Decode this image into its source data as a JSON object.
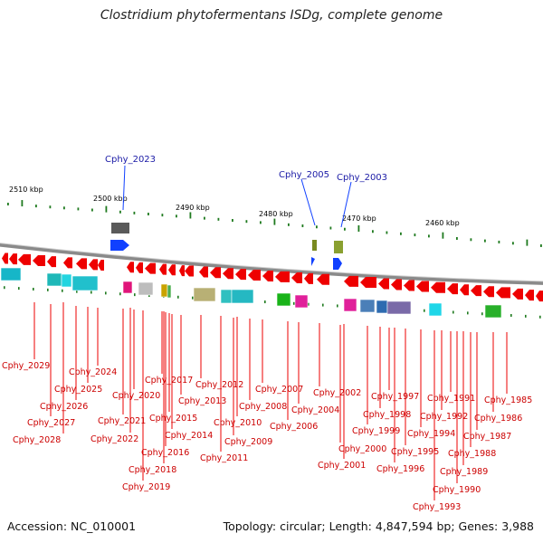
{
  "title": "Clostridium phytofermentans ISDg, complete genome",
  "accession_text": "Accession: NC_010001",
  "summary_text": "Topology: circular; Length: 4,847,594 bp; Genes: 3,988",
  "colors": {
    "gene_strand": "#ee0000",
    "gene_label": "#cc0000",
    "highlight_gene": "#1040ff",
    "highlight_label": "#1a1aa6",
    "tick": "#1e7a1e",
    "backbone": "#8a8a8a"
  },
  "kbp_labels": [
    "2510 kbp",
    "2500 kbp",
    "2490 kbp",
    "2480 kbp",
    "2470 kbp",
    "2460 kbp"
  ],
  "highlighted_genes": [
    "Cphy_2023",
    "Cphy_2005",
    "Cphy_2003"
  ],
  "gene_labels": [
    "Cphy_2029",
    "Cphy_2028",
    "Cphy_2027",
    "Cphy_2026",
    "Cphy_2025",
    "Cphy_2024",
    "Cphy_2022",
    "Cphy_2021",
    "Cphy_2020",
    "Cphy_2019",
    "Cphy_2018",
    "Cphy_2017",
    "Cphy_2016",
    "Cphy_2015",
    "Cphy_2014",
    "Cphy_2013",
    "Cphy_2012",
    "Cphy_2011",
    "Cphy_2010",
    "Cphy_2009",
    "Cphy_2008",
    "Cphy_2007",
    "Cphy_2006",
    "Cphy_2004",
    "Cphy_2002",
    "Cphy_2001",
    "Cphy_2000",
    "Cphy_1999",
    "Cphy_1998",
    "Cphy_1997",
    "Cphy_1996",
    "Cphy_1995",
    "Cphy_1994",
    "Cphy_1993",
    "Cphy_1992",
    "Cphy_1991",
    "Cphy_1990",
    "Cphy_1989",
    "Cphy_1988",
    "Cphy_1987",
    "Cphy_1986",
    "Cphy_1985"
  ]
}
